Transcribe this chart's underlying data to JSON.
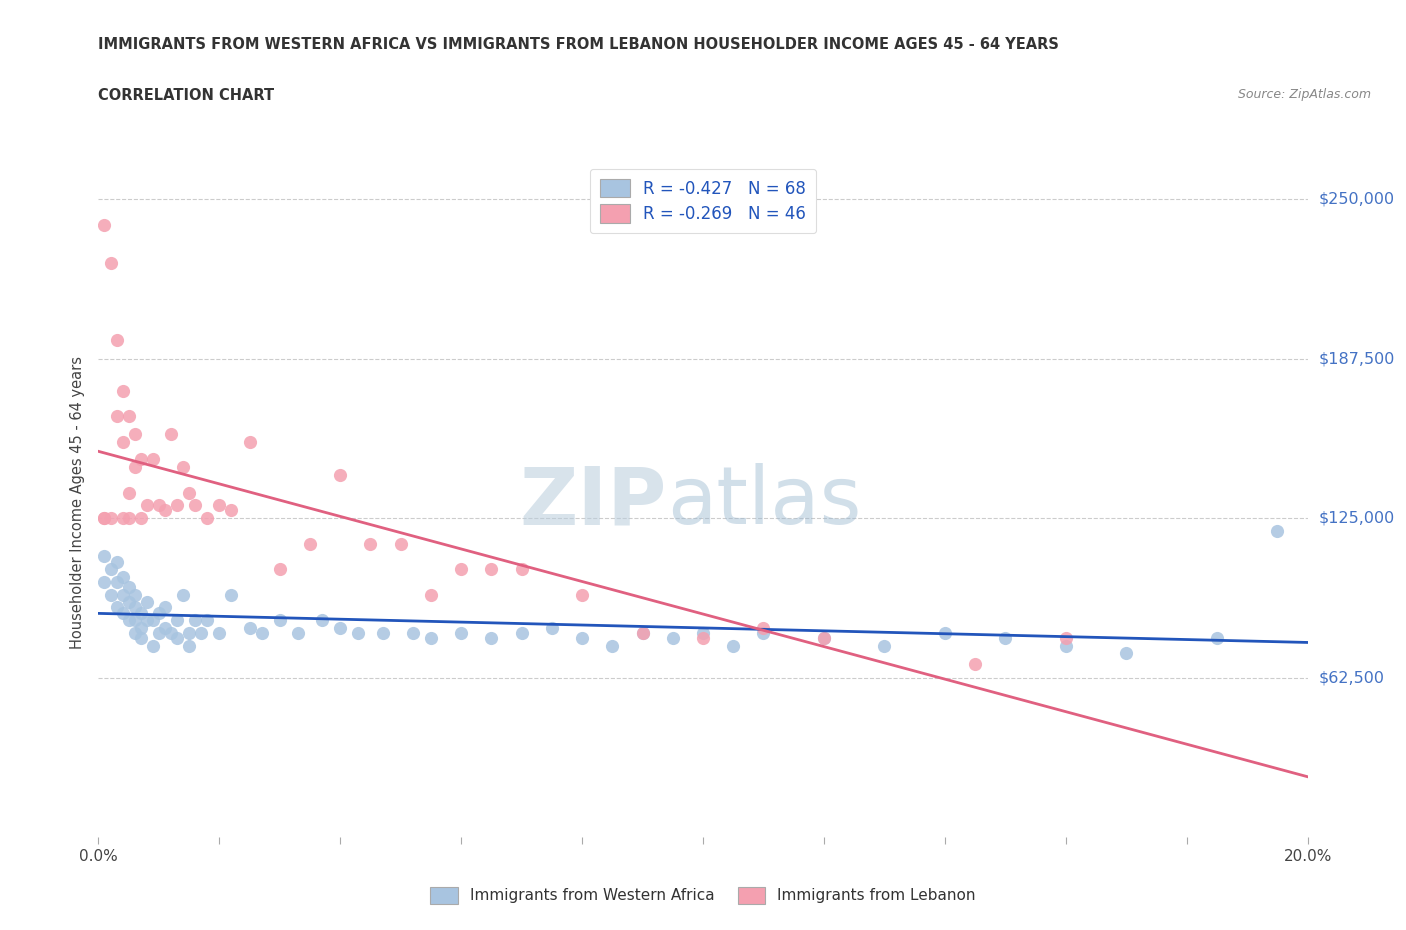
{
  "title": "IMMIGRANTS FROM WESTERN AFRICA VS IMMIGRANTS FROM LEBANON HOUSEHOLDER INCOME AGES 45 - 64 YEARS",
  "subtitle": "CORRELATION CHART",
  "source": "Source: ZipAtlas.com",
  "ylabel": "Householder Income Ages 45 - 64 years",
  "xlim": [
    0.0,
    0.2
  ],
  "ylim": [
    0,
    262500
  ],
  "yticks": [
    62500,
    125000,
    187500,
    250000
  ],
  "ytick_labels": [
    "$62,500",
    "$125,000",
    "$187,500",
    "$250,000"
  ],
  "xticks": [
    0.0,
    0.02,
    0.04,
    0.06,
    0.08,
    0.1,
    0.12,
    0.14,
    0.16,
    0.18,
    0.2
  ],
  "grid_color": "#cccccc",
  "background_color": "#ffffff",
  "watermark_zip": "ZIP",
  "watermark_atlas": "atlas",
  "series1_color": "#a8c4e0",
  "series2_color": "#f4a0b0",
  "line1_color": "#2255bb",
  "line2_color": "#e06080",
  "legend_label1": "R = -0.427   N = 68",
  "legend_label2": "R = -0.269   N = 46",
  "legend_label_bottom1": "Immigrants from Western Africa",
  "legend_label_bottom2": "Immigrants from Lebanon",
  "series1_x": [
    0.001,
    0.001,
    0.002,
    0.002,
    0.003,
    0.003,
    0.003,
    0.004,
    0.004,
    0.004,
    0.005,
    0.005,
    0.005,
    0.006,
    0.006,
    0.006,
    0.006,
    0.007,
    0.007,
    0.007,
    0.008,
    0.008,
    0.009,
    0.009,
    0.01,
    0.01,
    0.011,
    0.011,
    0.012,
    0.013,
    0.013,
    0.014,
    0.015,
    0.015,
    0.016,
    0.017,
    0.018,
    0.02,
    0.022,
    0.025,
    0.027,
    0.03,
    0.033,
    0.037,
    0.04,
    0.043,
    0.047,
    0.052,
    0.055,
    0.06,
    0.065,
    0.07,
    0.075,
    0.08,
    0.085,
    0.09,
    0.095,
    0.1,
    0.105,
    0.11,
    0.12,
    0.13,
    0.14,
    0.15,
    0.16,
    0.17,
    0.185,
    0.195
  ],
  "series1_y": [
    110000,
    100000,
    105000,
    95000,
    100000,
    90000,
    108000,
    95000,
    88000,
    102000,
    92000,
    85000,
    98000,
    90000,
    85000,
    80000,
    95000,
    88000,
    82000,
    78000,
    92000,
    85000,
    85000,
    75000,
    88000,
    80000,
    90000,
    82000,
    80000,
    85000,
    78000,
    95000,
    80000,
    75000,
    85000,
    80000,
    85000,
    80000,
    95000,
    82000,
    80000,
    85000,
    80000,
    85000,
    82000,
    80000,
    80000,
    80000,
    78000,
    80000,
    78000,
    80000,
    82000,
    78000,
    75000,
    80000,
    78000,
    80000,
    75000,
    80000,
    78000,
    75000,
    80000,
    78000,
    75000,
    72000,
    78000,
    120000
  ],
  "series2_x": [
    0.001,
    0.001,
    0.001,
    0.002,
    0.002,
    0.003,
    0.003,
    0.004,
    0.004,
    0.004,
    0.005,
    0.005,
    0.005,
    0.006,
    0.006,
    0.007,
    0.007,
    0.008,
    0.009,
    0.01,
    0.011,
    0.012,
    0.013,
    0.014,
    0.015,
    0.016,
    0.018,
    0.02,
    0.022,
    0.025,
    0.03,
    0.035,
    0.04,
    0.045,
    0.05,
    0.055,
    0.06,
    0.065,
    0.07,
    0.08,
    0.09,
    0.1,
    0.11,
    0.12,
    0.145,
    0.16
  ],
  "series2_y": [
    125000,
    125000,
    240000,
    225000,
    125000,
    195000,
    165000,
    175000,
    155000,
    125000,
    135000,
    165000,
    125000,
    158000,
    145000,
    148000,
    125000,
    130000,
    148000,
    130000,
    128000,
    158000,
    130000,
    145000,
    135000,
    130000,
    125000,
    130000,
    128000,
    155000,
    105000,
    115000,
    142000,
    115000,
    115000,
    95000,
    105000,
    105000,
    105000,
    95000,
    80000,
    78000,
    82000,
    78000,
    68000,
    78000
  ]
}
